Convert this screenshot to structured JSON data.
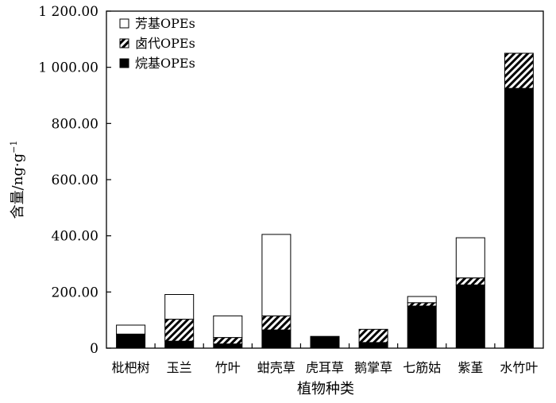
{
  "chart_data": {
    "type": "bar",
    "stacked": true,
    "categories": [
      "枇杷树",
      "玉兰",
      "竹叶",
      "蚶壳草",
      "虎耳草",
      "鹅掌草",
      "七筋姑",
      "紫堇",
      "水竹叶"
    ],
    "series": [
      {
        "name": "烷基OPEs",
        "pattern": "solid-black",
        "values": [
          50,
          25,
          15,
          65,
          42,
          20,
          150,
          225,
          925
        ]
      },
      {
        "name": "卤代OPEs",
        "pattern": "hatched",
        "values": [
          0,
          78,
          23,
          50,
          0,
          47,
          12,
          25,
          125
        ]
      },
      {
        "name": "芳基OPEs",
        "pattern": "white",
        "values": [
          32,
          88,
          77,
          290,
          0,
          0,
          22,
          143,
          0
        ]
      }
    ],
    "legend_order": [
      "芳基OPEs",
      "卤代OPEs",
      "烷基OPEs"
    ],
    "legend_position": "top-left",
    "ylim": [
      0,
      1200
    ],
    "yticks": [
      0,
      200,
      400,
      600,
      800,
      1000,
      1200
    ],
    "ytick_labels": [
      "0",
      "200.00",
      "400.00",
      "600.00",
      "800.00",
      "1 000.00",
      "1 200.00"
    ],
    "ylabel_text": "含量/ng·g",
    "ylabel_sup": "−1",
    "xlabel": "植物种类",
    "grid": false
  }
}
